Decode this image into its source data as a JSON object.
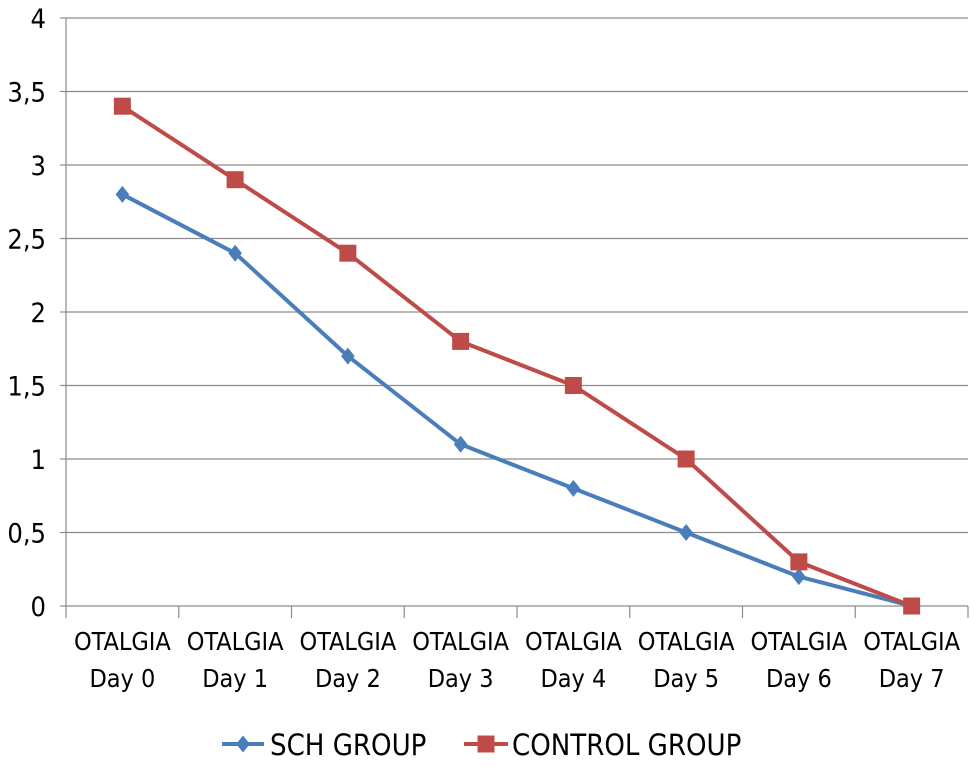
{
  "chart_data": {
    "type": "line",
    "categories": [
      [
        "OTALGIA",
        "Day 0"
      ],
      [
        "OTALGIA",
        "Day 1"
      ],
      [
        "OTALGIA",
        "Day 2"
      ],
      [
        "OTALGIA",
        "Day 3"
      ],
      [
        "OTALGIA",
        "Day 4"
      ],
      [
        "OTALGIA",
        "Day 5"
      ],
      [
        "OTALGIA",
        "Day 6"
      ],
      [
        "OTALGIA",
        "Day 7"
      ]
    ],
    "series": [
      {
        "name": "SCH GROUP",
        "marker": "diamond",
        "color": "#4a7ebb",
        "values": [
          2.8,
          2.4,
          1.7,
          1.1,
          0.8,
          0.5,
          0.2,
          0
        ]
      },
      {
        "name": "CONTROL GROUP",
        "marker": "square",
        "color": "#be4b48",
        "values": [
          3.4,
          2.9,
          2.4,
          1.8,
          1.5,
          1.0,
          0.3,
          0
        ]
      }
    ],
    "ylim": [
      0,
      4
    ],
    "yticks": [
      0,
      0.5,
      1,
      1.5,
      2,
      2.5,
      3,
      3.5,
      4
    ],
    "ytick_labels": [
      "0",
      "0,5",
      "1",
      "1,5",
      "2",
      "2,5",
      "3",
      "3,5",
      "4"
    ],
    "grid": true,
    "legend_position": "bottom",
    "title": "",
    "xlabel": "",
    "ylabel": ""
  }
}
